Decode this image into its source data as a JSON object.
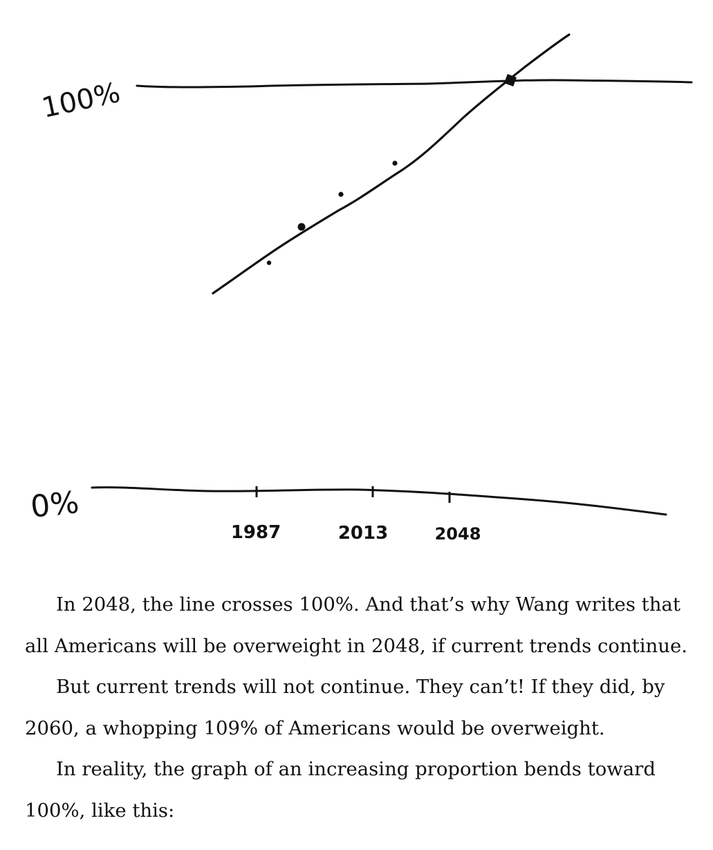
{
  "figure": {
    "y_labels": {
      "top": "100%",
      "bottom": "0%"
    },
    "x_ticks": [
      "1987",
      "2013",
      "2048"
    ],
    "colors": {
      "ink": "#111111",
      "background": "#ffffff"
    }
  },
  "chart_data": {
    "type": "line",
    "title": "",
    "xlabel": "",
    "ylabel": "",
    "x_tick_labels": [
      "1987",
      "2013",
      "2048"
    ],
    "y_tick_labels": [
      "0%",
      "100%"
    ],
    "ylim": [
      0,
      100
    ],
    "series": [
      {
        "kind": "scatter",
        "x": [
          1976,
          1987,
          1999,
          2013,
          2048
        ],
        "y": [
          56,
          64,
          71,
          78,
          100
        ]
      },
      {
        "kind": "trend_line",
        "x": [
          1962,
          2048,
          2060
        ],
        "y": [
          49,
          100,
          109
        ]
      }
    ],
    "reference_lines": [
      {
        "y": 100,
        "label": "100%"
      },
      {
        "y": 0,
        "label": "0%"
      }
    ],
    "grid": false,
    "legend": "none"
  },
  "text": {
    "paragraphs": [
      "In 2048, the line crosses 100%. And that’s why Wang writes that all Americans will be overweight in 2048, if current trends continue.",
      "But current trends will not continue. They can’t! If they did, by 2060, a whopping 109% of Americans would be overweight.",
      "In reality, the graph of an increasing proportion bends toward 100%, like this:"
    ],
    "lines": [
      "In 2048, the line crosses 100%. And that’s why Wang writes that",
      "all Americans will be overweight in 2048, if current trends continue.",
      "But current trends will not continue. They can’t! If they did, by",
      "2060, a whopping 109% of Americans would be overweight.",
      "In reality, the graph of an increasing proportion bends toward",
      "100%, like this:"
    ]
  }
}
